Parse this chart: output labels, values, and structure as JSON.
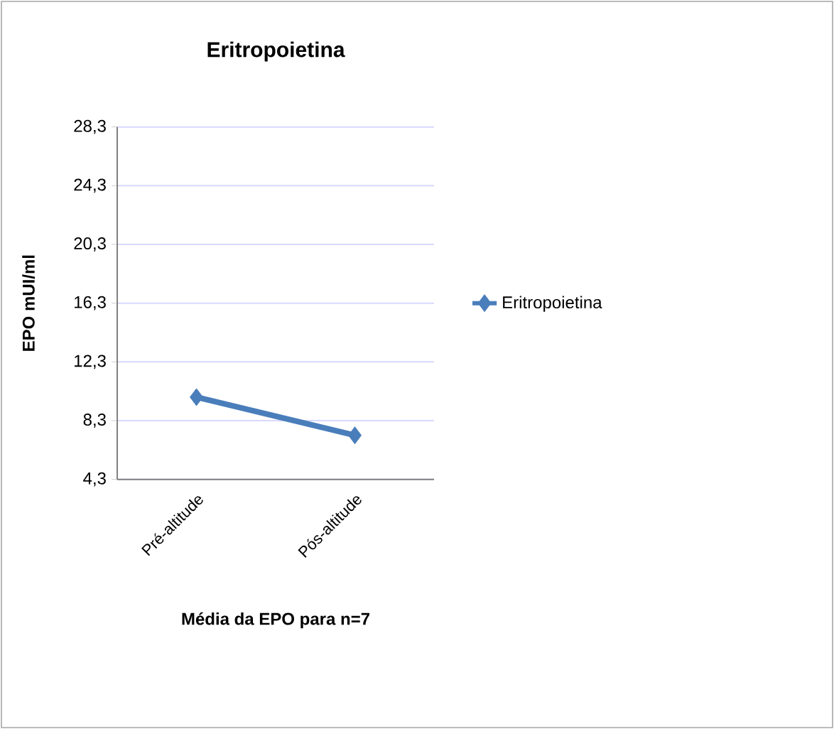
{
  "chart_data": {
    "type": "line",
    "title": "Eritropoietina",
    "xlabel": "Média da EPO para n=7",
    "ylabel": "EPO mUI/ml",
    "categories": [
      "Pré-altitude",
      "Pós-altitude"
    ],
    "series": [
      {
        "name": "Eritropoietina",
        "color": "#4a7ebb",
        "values": [
          9.9,
          7.3
        ]
      }
    ],
    "ylim": [
      4.3,
      28.3
    ],
    "yticks": [
      {
        "value": 4.3,
        "label": "4,3"
      },
      {
        "value": 8.3,
        "label": "8,3"
      },
      {
        "value": 12.3,
        "label": "12,3"
      },
      {
        "value": 16.3,
        "label": "16,3"
      },
      {
        "value": 20.3,
        "label": "20,3"
      },
      {
        "value": 24.3,
        "label": "24,3"
      },
      {
        "value": 28.3,
        "label": "28,3"
      }
    ],
    "grid": "y",
    "legend": "right",
    "marker": "diamond",
    "line_style": "solid"
  }
}
